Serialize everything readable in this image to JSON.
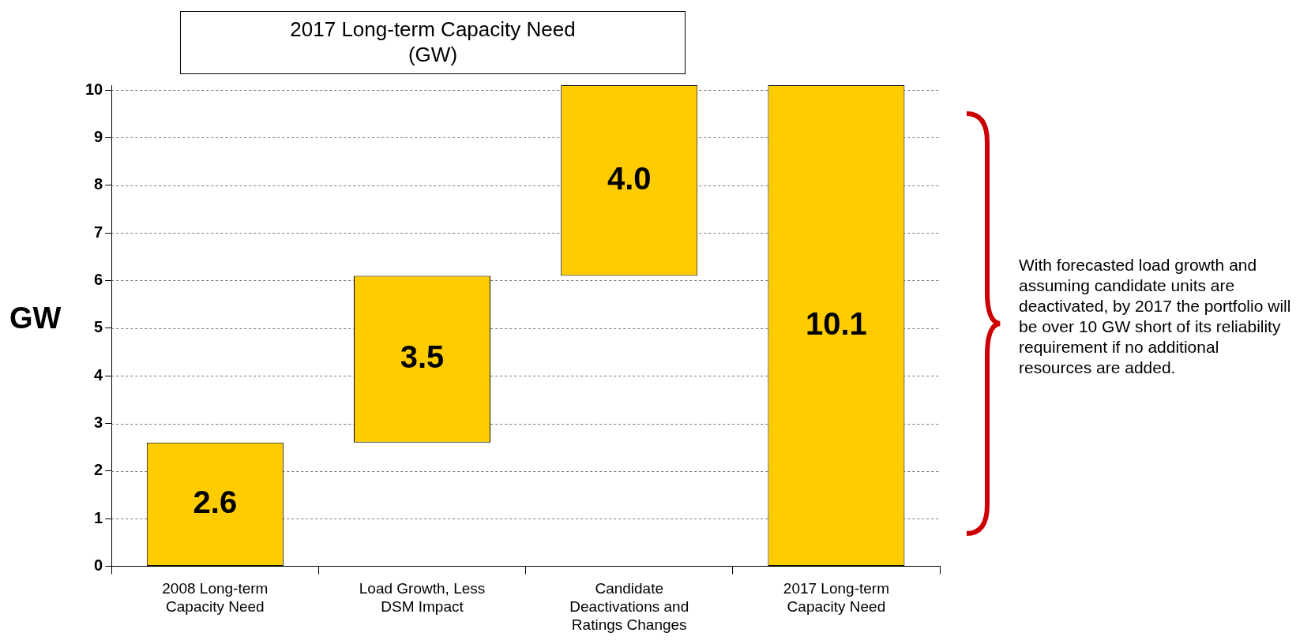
{
  "chart_data": {
    "type": "bar",
    "title": "2017 Long-term Capacity Need",
    "subtitle": "(GW)",
    "ylabel": "GW",
    "categories": [
      "2008 Long-term Capacity Need",
      "Load Growth, Less DSM Impact",
      "Candidate Deactivations and Ratings Changes",
      "2017 Long-term Capacity Need"
    ],
    "values": [
      2.6,
      3.5,
      4.0,
      10.1
    ],
    "base": [
      0,
      2.6,
      6.1,
      0
    ],
    "color": "#ffcc00",
    "data_labels": true,
    "value_labels": [
      "2.6",
      "3.5",
      "4.0",
      "10.1"
    ],
    "ylim": [
      0,
      10.1
    ],
    "yticks": [
      0,
      1,
      2,
      3,
      4,
      5,
      6,
      7,
      8,
      9,
      10
    ],
    "grid": "y",
    "legend": false,
    "annotations": [
      "With forecasted load growth and assuming candidate units are deactivated, by 2017 the portfolio will be over 10 GW short of its reliability requirement if no additional resources are added."
    ]
  }
}
